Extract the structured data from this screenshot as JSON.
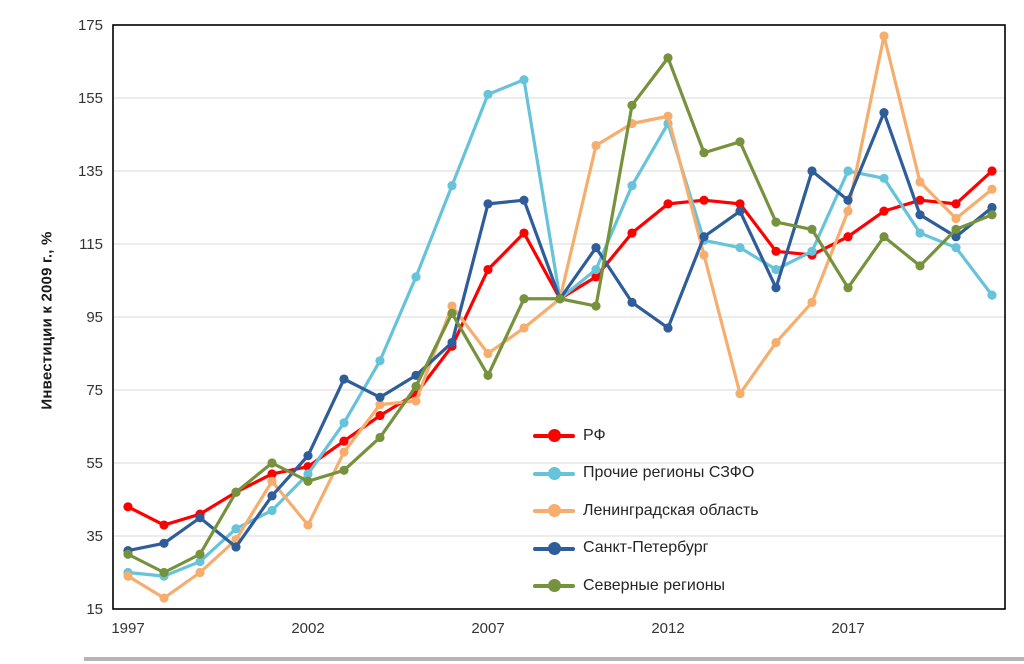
{
  "chart_data": {
    "type": "line",
    "title": "",
    "xlabel": "",
    "ylabel": "Инвестиции к 2009 г., %",
    "x": [
      1997,
      1998,
      1999,
      2000,
      2001,
      2002,
      2003,
      2004,
      2005,
      2006,
      2007,
      2008,
      2009,
      2010,
      2011,
      2012,
      2013,
      2014,
      2015,
      2016,
      2017,
      2018,
      2019,
      2020,
      2021
    ],
    "x_tick_labels": [
      "1997",
      "2002",
      "2007",
      "2012",
      "2017"
    ],
    "x_tick_years": [
      1997,
      2002,
      2007,
      2012,
      2017
    ],
    "y_ticks": [
      15,
      35,
      55,
      75,
      95,
      115,
      135,
      155,
      175
    ],
    "ylim": [
      15,
      175
    ],
    "grid": "horizontal",
    "gridline_color": "#d9d9d9",
    "axis_color": "#000000",
    "tick_label_color": "#333333",
    "legend_position": "inside-right-middle",
    "series": [
      {
        "name": "РФ",
        "color": "#ff0000",
        "values": [
          43,
          38,
          41,
          47,
          52,
          54,
          61,
          68,
          74,
          87,
          108,
          118,
          100,
          106,
          118,
          126,
          127,
          126,
          113,
          112,
          117,
          124,
          127,
          126,
          135
        ]
      },
      {
        "name": "Прочие регионы СЗФО",
        "color": "#67c3da",
        "values": [
          25,
          24,
          28,
          37,
          42,
          52,
          66,
          83,
          106,
          131,
          156,
          160,
          100,
          108,
          131,
          148,
          116,
          114,
          108,
          113,
          135,
          133,
          118,
          114,
          101
        ]
      },
      {
        "name": "Ленинградская область",
        "color": "#f6ae6e",
        "values": [
          24,
          18,
          25,
          34,
          50,
          38,
          58,
          71,
          72,
          98,
          85,
          92,
          100,
          142,
          148,
          150,
          112,
          74,
          88,
          99,
          124,
          172,
          132,
          122,
          130
        ]
      },
      {
        "name": "Санкт-Петербург",
        "color": "#2e5d9a",
        "values": [
          31,
          33,
          40,
          32,
          46,
          57,
          78,
          73,
          79,
          88,
          126,
          127,
          100,
          114,
          99,
          92,
          117,
          124,
          103,
          135,
          127,
          151,
          123,
          117,
          125
        ]
      },
      {
        "name": "Северные регионы",
        "color": "#76923c",
        "values": [
          30,
          25,
          30,
          47,
          55,
          50,
          53,
          62,
          76,
          96,
          79,
          100,
          100,
          98,
          153,
          166,
          140,
          143,
          121,
          119,
          103,
          117,
          109,
          119,
          123
        ]
      }
    ]
  }
}
